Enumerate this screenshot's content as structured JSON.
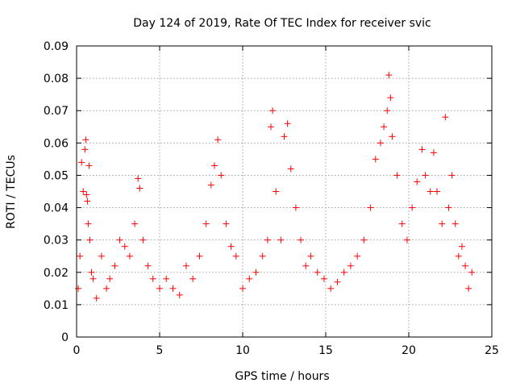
{
  "chart_data": {
    "type": "scatter",
    "title": "Day 124 of 2019, Rate Of TEC Index for receiver svic",
    "xlabel": "GPS time / hours",
    "ylabel": "ROTI / TECUs",
    "xlim": [
      0,
      25
    ],
    "ylim": [
      0,
      0.09
    ],
    "xticks": [
      0,
      5,
      10,
      15,
      20,
      25
    ],
    "xtick_labels": [
      "0",
      "5",
      "10",
      "15",
      "20",
      "25"
    ],
    "yticks": [
      0,
      0.01,
      0.02,
      0.03,
      0.04,
      0.05,
      0.06,
      0.07,
      0.08,
      0.09
    ],
    "ytick_labels": [
      "0",
      "0.01",
      "0.02",
      "0.03",
      "0.04",
      "0.05",
      "0.06",
      "0.07",
      "0.08",
      "0.09"
    ],
    "grid": true,
    "marker": "+",
    "color": "#ff0000",
    "series": [
      {
        "name": "ROTI",
        "x": [
          0.1,
          0.2,
          0.3,
          0.4,
          0.5,
          0.55,
          0.6,
          0.65,
          0.7,
          0.75,
          0.8,
          0.9,
          1.0,
          1.2,
          1.5,
          1.8,
          2.0,
          2.3,
          2.6,
          2.9,
          3.2,
          3.5,
          3.7,
          3.8,
          4.0,
          4.3,
          4.6,
          5.0,
          5.4,
          5.8,
          6.2,
          6.6,
          7.0,
          7.4,
          7.8,
          8.1,
          8.3,
          8.5,
          8.7,
          9.0,
          9.3,
          9.6,
          10.0,
          10.4,
          10.8,
          11.2,
          11.5,
          11.7,
          11.8,
          12.0,
          12.3,
          12.5,
          12.7,
          12.9,
          13.2,
          13.5,
          13.8,
          14.1,
          14.5,
          14.9,
          15.3,
          15.7,
          16.1,
          16.5,
          16.9,
          17.3,
          17.7,
          18.0,
          18.3,
          18.5,
          18.7,
          18.8,
          18.9,
          19.0,
          19.3,
          19.6,
          19.9,
          20.2,
          20.5,
          20.8,
          21.0,
          21.3,
          21.5,
          21.7,
          22.0,
          22.2,
          22.4,
          22.6,
          22.8,
          23.0,
          23.2,
          23.4,
          23.6,
          23.8
        ],
        "y": [
          0.015,
          0.025,
          0.054,
          0.045,
          0.058,
          0.061,
          0.044,
          0.042,
          0.035,
          0.053,
          0.03,
          0.02,
          0.018,
          0.012,
          0.025,
          0.015,
          0.018,
          0.022,
          0.03,
          0.028,
          0.025,
          0.035,
          0.049,
          0.046,
          0.03,
          0.022,
          0.018,
          0.015,
          0.018,
          0.015,
          0.013,
          0.022,
          0.018,
          0.025,
          0.035,
          0.047,
          0.053,
          0.061,
          0.05,
          0.035,
          0.028,
          0.025,
          0.015,
          0.018,
          0.02,
          0.025,
          0.03,
          0.065,
          0.07,
          0.045,
          0.03,
          0.062,
          0.066,
          0.052,
          0.04,
          0.03,
          0.022,
          0.025,
          0.02,
          0.018,
          0.015,
          0.017,
          0.02,
          0.022,
          0.025,
          0.03,
          0.04,
          0.055,
          0.06,
          0.065,
          0.07,
          0.081,
          0.074,
          0.062,
          0.05,
          0.035,
          0.03,
          0.04,
          0.048,
          0.058,
          0.05,
          0.045,
          0.057,
          0.045,
          0.035,
          0.068,
          0.04,
          0.05,
          0.035,
          0.025,
          0.028,
          0.022,
          0.015,
          0.02
        ]
      }
    ]
  }
}
